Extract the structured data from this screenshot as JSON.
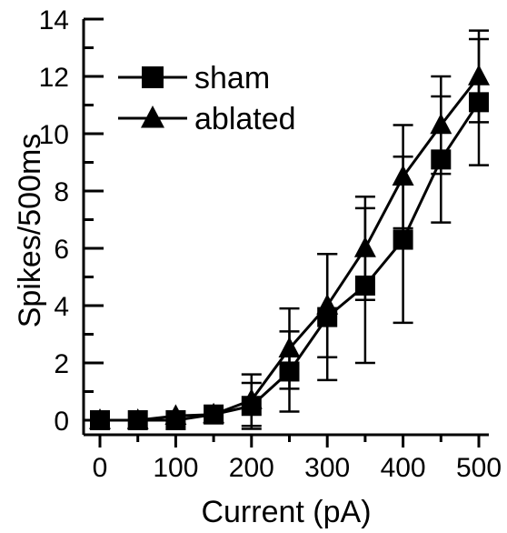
{
  "chart_data": {
    "type": "line",
    "title": "",
    "xlabel": "Current (pA)",
    "ylabel": "Spikes/500ms",
    "xlim": [
      -20,
      520
    ],
    "ylim": [
      -0.6,
      14
    ],
    "x_ticks": [
      0,
      100,
      200,
      300,
      400,
      500
    ],
    "y_ticks": [
      0,
      2,
      4,
      6,
      8,
      10,
      12,
      14
    ],
    "grid": false,
    "legend_position": "top-left",
    "x": [
      0,
      50,
      100,
      150,
      200,
      250,
      300,
      350,
      400,
      450,
      500
    ],
    "series": [
      {
        "name": "sham",
        "marker": "square",
        "values": [
          0,
          0,
          0,
          0.2,
          0.5,
          1.7,
          3.6,
          4.7,
          6.3,
          9.1,
          11.1
        ],
        "error": [
          0,
          0,
          0,
          0,
          0.8,
          1.4,
          2.2,
          2.7,
          2.9,
          2.2,
          2.2
        ]
      },
      {
        "name": "ablated",
        "marker": "triangle",
        "values": [
          0,
          0,
          0.15,
          0.2,
          0.7,
          2.5,
          4.0,
          6.0,
          8.5,
          10.3,
          12.0
        ],
        "error": [
          0,
          0,
          0,
          0,
          0.9,
          1.4,
          1.8,
          1.8,
          1.8,
          1.7,
          1.6
        ]
      }
    ],
    "colors": {
      "line": "#000000",
      "marker": "#000000"
    }
  }
}
